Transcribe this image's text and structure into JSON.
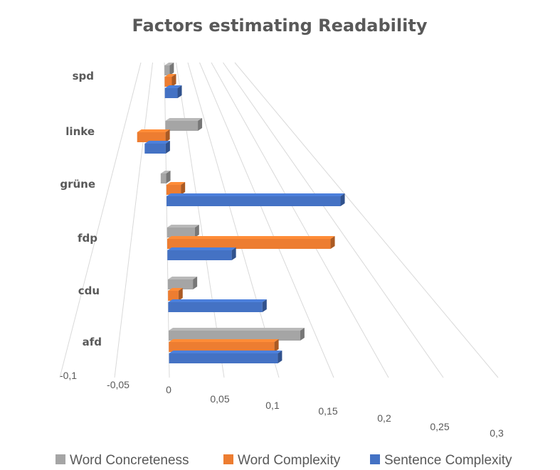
{
  "chart_data": {
    "type": "bar",
    "orientation": "horizontal",
    "style": "3d",
    "title": "Factors estimating Readability",
    "categories": [
      "spd",
      "linke",
      "grüne",
      "fdp",
      "cdu",
      "afd"
    ],
    "series": [
      {
        "name": "Word Concreteness",
        "color": "#a5a5a5",
        "values": [
          0.02,
          0.08,
          -0.01,
          0.04,
          0.03,
          0.135
        ]
      },
      {
        "name": "Word Complexity",
        "color": "#ed7d31",
        "values": [
          0.025,
          -0.065,
          0.025,
          0.225,
          0.012,
          0.105
        ]
      },
      {
        "name": "Sentence Complexity",
        "color": "#4472c4",
        "values": [
          0.04,
          -0.045,
          0.285,
          0.085,
          0.105,
          0.105
        ]
      }
    ],
    "x_ticks": [
      "-0,1",
      "-0,05",
      "0",
      "0,05",
      "0,1",
      "0,15",
      "0,2",
      "0,25",
      "0,3"
    ],
    "xlim": [
      -0.1,
      0.3
    ],
    "grid": true,
    "legend_position": "bottom"
  }
}
